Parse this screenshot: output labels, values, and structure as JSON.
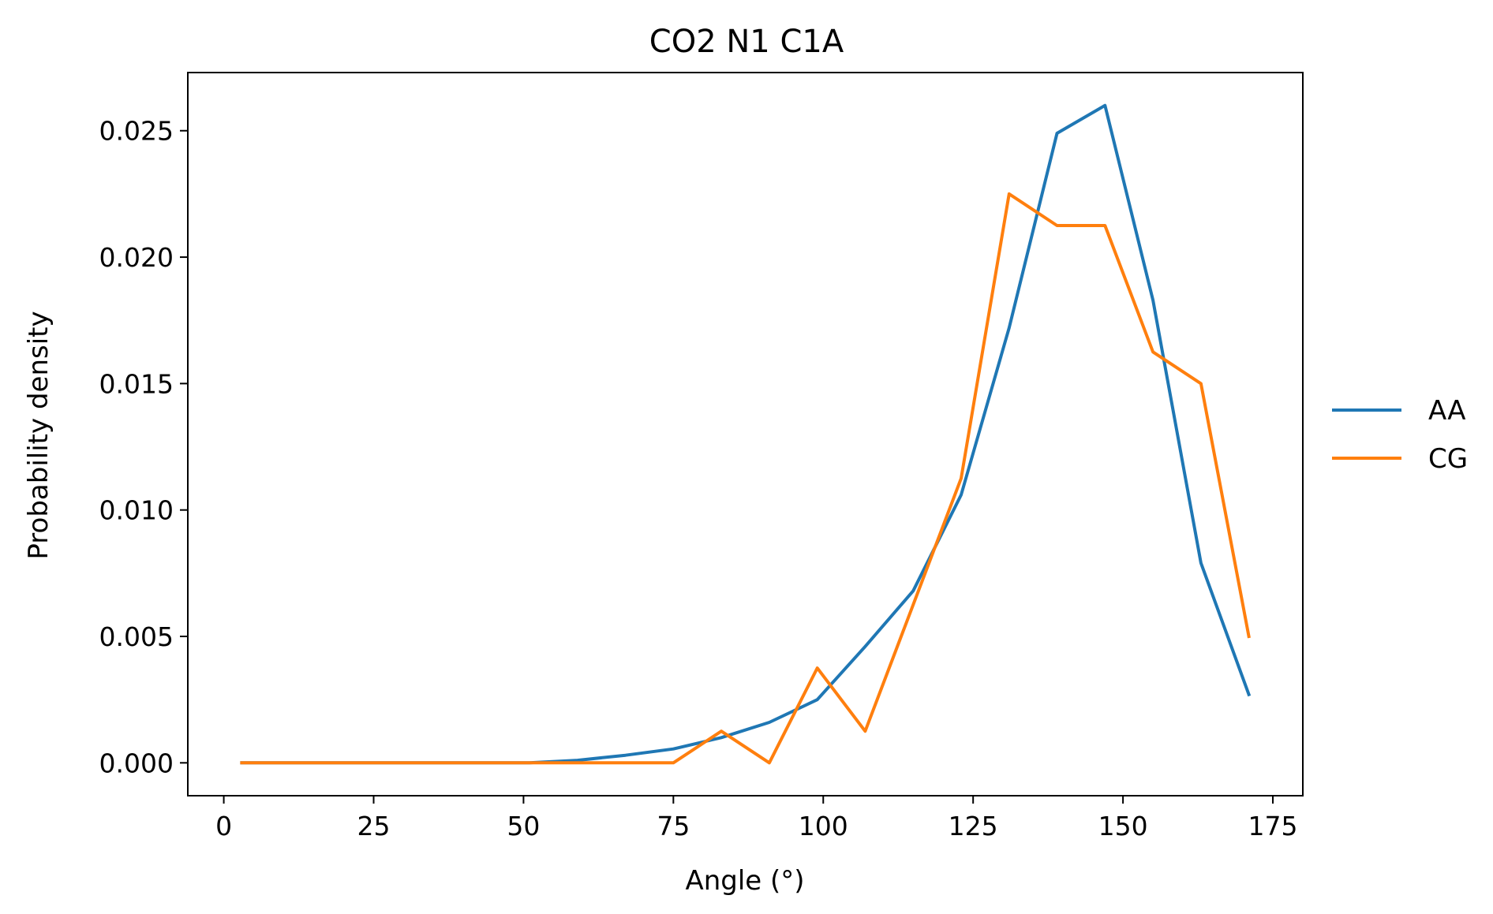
{
  "chart_data": {
    "type": "line",
    "title": "CO2 N1 C1A",
    "xlabel": "Angle (°)",
    "ylabel": "Probability density",
    "xlim": [
      -6,
      180
    ],
    "ylim": [
      -0.0013,
      0.0273
    ],
    "xticks": [
      0,
      25,
      50,
      75,
      100,
      125,
      150,
      175
    ],
    "yticks": [
      0.0,
      0.005,
      0.01,
      0.015,
      0.02,
      0.025
    ],
    "xtick_labels": [
      "0",
      "25",
      "50",
      "75",
      "100",
      "125",
      "150",
      "175"
    ],
    "ytick_labels": [
      "0.000",
      "0.005",
      "0.010",
      "0.015",
      "0.020",
      "0.025"
    ],
    "grid": false,
    "legend": "outside-right",
    "series": [
      {
        "name": "AA",
        "color": "#1f77b4",
        "x": [
          3,
          11,
          19,
          27,
          35,
          43,
          51,
          59,
          67,
          75,
          83,
          91,
          99,
          107,
          115,
          123,
          131,
          139,
          147,
          155,
          163,
          171
        ],
        "y": [
          0.0,
          0.0,
          0.0,
          0.0,
          0.0,
          0.0,
          0.0,
          0.0001,
          0.0003,
          0.00055,
          0.001,
          0.0016,
          0.0025,
          0.0046,
          0.0068,
          0.0106,
          0.0172,
          0.0249,
          0.026,
          0.0183,
          0.0079,
          0.0027
        ]
      },
      {
        "name": "CG",
        "color": "#ff7f0e",
        "x": [
          3,
          11,
          19,
          27,
          35,
          43,
          51,
          59,
          67,
          75,
          83,
          91,
          99,
          107,
          115,
          123,
          131,
          139,
          147,
          155,
          163,
          171
        ],
        "y": [
          0.0,
          0.0,
          0.0,
          0.0,
          0.0,
          0.0,
          0.0,
          0.0,
          0.0,
          0.0,
          0.00125,
          0.0,
          0.00375,
          0.00125,
          0.00625,
          0.01125,
          0.0225,
          0.02125,
          0.02125,
          0.01625,
          0.015,
          0.005
        ]
      }
    ]
  }
}
